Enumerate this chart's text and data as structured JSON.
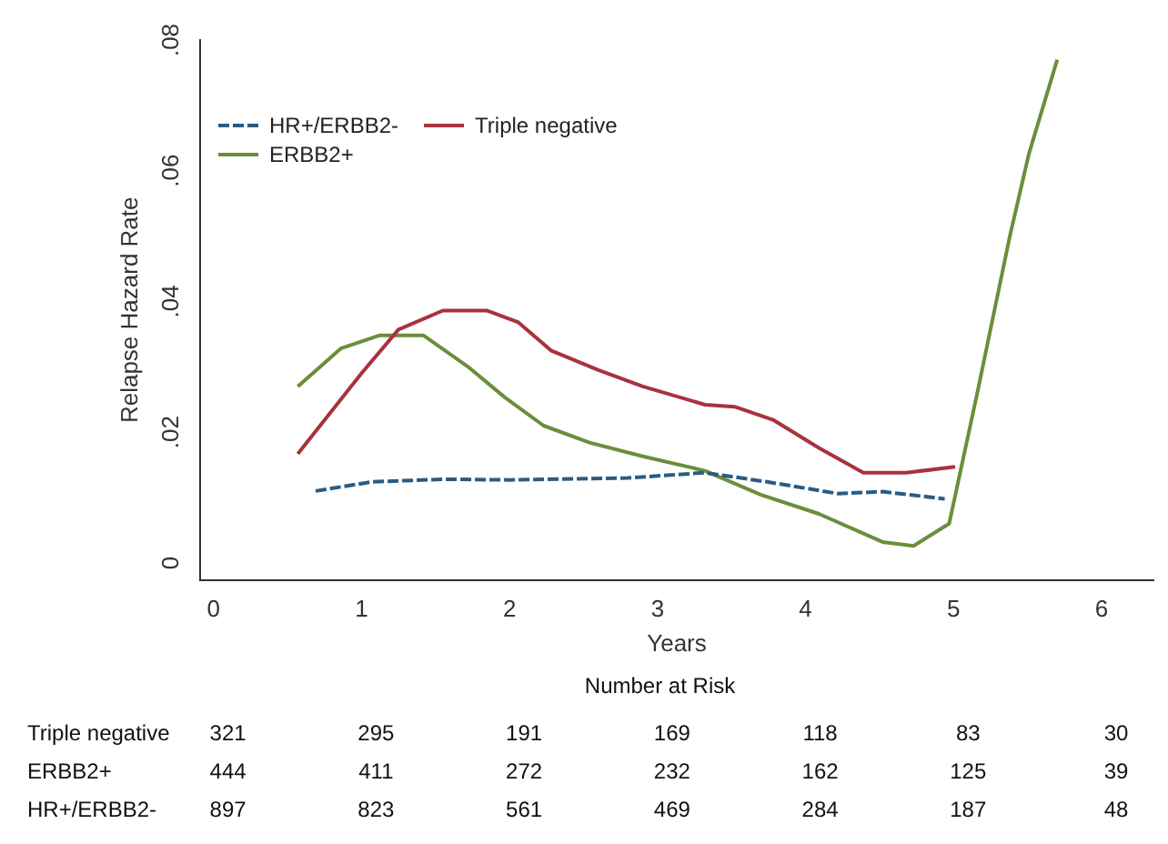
{
  "chart_data": {
    "type": "line",
    "xlabel": "Years",
    "ylabel": "Relapse Hazard Rate",
    "xlim": [
      -0.09,
      6.35
    ],
    "ylim": [
      -0.0026,
      0.08
    ],
    "xticks": [
      0,
      1,
      2,
      3,
      4,
      5,
      6
    ],
    "yticks": [
      {
        "value": 0,
        "label": "0"
      },
      {
        "value": 0.02,
        "label": ".02"
      },
      {
        "value": 0.04,
        "label": ".04"
      },
      {
        "value": 0.06,
        "label": ".06"
      },
      {
        "value": 0.08,
        "label": ".08"
      }
    ],
    "grid": false,
    "legend": "top left",
    "marker": "none",
    "series": [
      {
        "name": "HR+/ERBB2-",
        "color": "#2a5b84",
        "line_style": "dashed",
        "x": [
          0.69,
          1.07,
          1.56,
          2.0,
          2.8,
          3.32,
          3.74,
          4.22,
          4.52,
          4.94
        ],
        "values": [
          0.011,
          0.0124,
          0.0128,
          0.0127,
          0.013,
          0.0138,
          0.0124,
          0.0106,
          0.0109,
          0.0098
        ]
      },
      {
        "name": "Triple negative",
        "color": "#a8323e",
        "line_style": "solid",
        "x": [
          0.57,
          1.0,
          1.25,
          1.55,
          1.85,
          2.06,
          2.28,
          2.6,
          2.9,
          3.32,
          3.52,
          3.78,
          4.09,
          4.39,
          4.68,
          5.01
        ],
        "values": [
          0.0167,
          0.029,
          0.0357,
          0.0386,
          0.0386,
          0.0368,
          0.0325,
          0.0295,
          0.027,
          0.0242,
          0.0239,
          0.0219,
          0.0176,
          0.0138,
          0.0138,
          0.0147
        ]
      },
      {
        "name": "ERBB2+",
        "color": "#6b8e3a",
        "line_style": "solid",
        "x": [
          0.57,
          0.86,
          1.12,
          1.42,
          1.72,
          1.97,
          2.23,
          2.54,
          2.9,
          3.32,
          3.7,
          4.09,
          4.52,
          4.73,
          4.97,
          5.16,
          5.38,
          5.51,
          5.7
        ],
        "values": [
          0.027,
          0.0328,
          0.0348,
          0.0348,
          0.03,
          0.0253,
          0.021,
          0.0184,
          0.0163,
          0.0141,
          0.0104,
          0.0075,
          0.0032,
          0.0026,
          0.006,
          0.026,
          0.05,
          0.0627,
          0.077
        ]
      }
    ],
    "annotations": [
      "Number at Risk",
      "Triple negative",
      "321",
      "295",
      "191",
      "169",
      "118",
      "83",
      "30",
      "ERBB2+",
      "444",
      "411",
      "272",
      "232",
      "162",
      "125",
      "39",
      "HR+/ERBB2-",
      "897",
      "823",
      "561",
      "469",
      "284",
      "187",
      "48"
    ]
  }
}
